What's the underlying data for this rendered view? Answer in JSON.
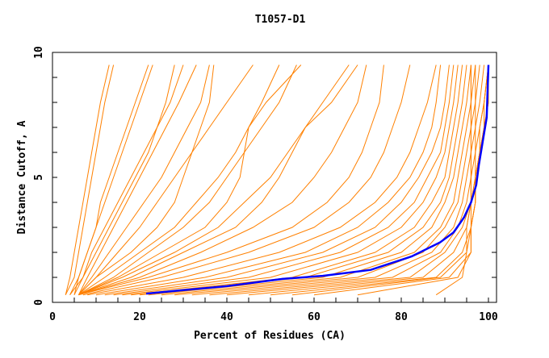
{
  "chart_data": {
    "type": "line",
    "title": "T1057-D1",
    "xlabel": "Percent of Residues (CA)",
    "ylabel": "Distance Cutoff, A",
    "xlim": [
      0,
      102
    ],
    "ylim": [
      0,
      10
    ],
    "xticks": [
      0,
      20,
      40,
      60,
      80,
      100
    ],
    "yticks": [
      0,
      5,
      10
    ],
    "grid": false,
    "legend": "none",
    "colors": {
      "models": "#ff8000",
      "highlight": "#0000ff"
    },
    "y_levels": [
      0.3,
      1,
      2,
      3,
      4,
      5,
      6,
      7,
      8,
      9.5
    ],
    "model_series_x": [
      [
        3,
        4,
        5,
        6,
        7,
        8,
        9,
        10,
        11,
        13
      ],
      [
        3,
        5,
        6,
        7,
        8,
        9,
        10,
        11,
        12,
        14
      ],
      [
        4,
        6,
        8,
        10,
        12,
        14,
        16,
        18,
        20,
        23
      ],
      [
        5,
        6,
        8,
        10,
        11,
        13,
        15,
        17,
        19,
        22
      ],
      [
        5,
        7,
        9,
        12,
        15,
        18,
        21,
        24,
        27,
        30
      ],
      [
        6,
        8,
        11,
        14,
        17,
        20,
        23,
        26,
        29,
        33
      ],
      [
        4,
        7,
        10,
        13,
        16,
        19,
        22,
        24,
        26,
        28
      ],
      [
        6,
        9,
        13,
        17,
        21,
        25,
        28,
        31,
        34,
        36
      ],
      [
        6,
        10,
        15,
        20,
        24,
        28,
        32,
        36,
        40,
        46
      ],
      [
        6,
        12,
        20,
        28,
        33,
        38,
        42,
        45,
        48,
        52
      ],
      [
        6,
        15,
        25,
        35,
        40,
        43,
        44,
        45,
        49,
        57
      ],
      [
        6,
        18,
        30,
        42,
        48,
        52,
        55,
        58,
        62,
        68
      ],
      [
        6,
        20,
        34,
        46,
        55,
        60,
        64,
        67,
        70,
        72
      ],
      [
        6,
        22,
        40,
        55,
        63,
        68,
        71,
        73,
        75,
        76
      ],
      [
        7,
        25,
        45,
        60,
        68,
        73,
        76,
        78,
        80,
        82
      ],
      [
        8,
        30,
        52,
        66,
        74,
        79,
        82,
        84,
        86,
        88
      ],
      [
        10,
        35,
        58,
        70,
        77,
        82,
        85,
        87,
        88,
        89
      ],
      [
        12,
        40,
        62,
        74,
        80,
        84,
        87,
        89,
        90,
        91
      ],
      [
        14,
        45,
        66,
        77,
        83,
        86,
        89,
        90,
        91,
        92
      ],
      [
        16,
        50,
        70,
        80,
        85,
        88,
        90,
        91,
        92,
        93
      ],
      [
        18,
        55,
        74,
        83,
        87,
        90,
        91,
        92,
        93,
        94
      ],
      [
        20,
        58,
        77,
        85,
        89,
        91,
        92,
        93,
        94,
        95
      ],
      [
        22,
        62,
        80,
        87,
        90,
        92,
        93,
        94,
        95,
        96
      ],
      [
        25,
        66,
        83,
        89,
        92,
        93,
        94,
        95,
        96,
        97
      ],
      [
        28,
        70,
        85,
        90,
        93,
        94,
        95,
        96,
        97,
        98
      ],
      [
        32,
        74,
        87,
        92,
        94,
        95,
        96,
        97,
        98,
        99
      ],
      [
        36,
        78,
        89,
        93,
        95,
        96,
        97,
        98,
        99,
        100
      ],
      [
        40,
        82,
        90,
        94,
        96,
        97,
        98,
        99,
        99,
        100
      ],
      [
        45,
        85,
        92,
        95,
        96,
        97,
        98,
        99,
        100,
        100
      ],
      [
        50,
        88,
        94,
        96,
        97,
        97,
        98,
        99,
        100,
        100
      ],
      [
        55,
        89,
        95,
        96,
        97,
        97,
        98,
        98,
        99,
        100
      ],
      [
        60,
        91,
        96,
        96,
        97,
        97,
        97,
        97,
        97,
        97
      ],
      [
        70,
        93,
        96,
        96,
        96,
        96,
        96,
        96,
        96,
        96
      ],
      [
        88,
        94,
        95,
        95,
        96,
        96,
        96,
        96,
        96,
        96
      ],
      [
        6,
        14,
        22,
        30,
        36,
        40,
        44,
        48,
        52,
        56
      ],
      [
        6,
        16,
        28,
        38,
        44,
        50,
        54,
        58,
        64,
        70
      ],
      [
        6,
        10,
        18,
        24,
        28,
        30,
        32,
        34,
        36,
        37
      ]
    ],
    "highlight_series": {
      "x": [
        21.5,
        40,
        52.8,
        62,
        73,
        82.4,
        88.9,
        92,
        94.4,
        96,
        97.2,
        97.8,
        98.7,
        99.6,
        100
      ],
      "y": [
        0.35,
        0.65,
        0.94,
        1.06,
        1.3,
        1.84,
        2.4,
        2.8,
        3.4,
        4.0,
        4.7,
        5.5,
        6.45,
        7.4,
        9.5
      ]
    }
  }
}
